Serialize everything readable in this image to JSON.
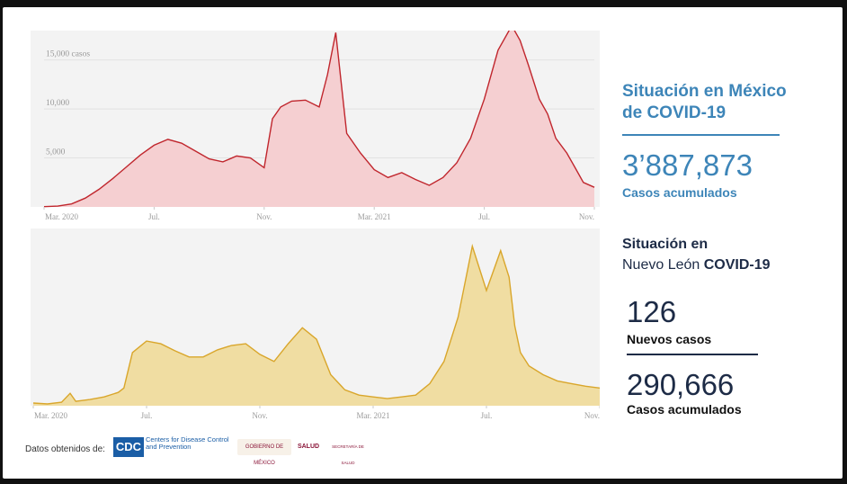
{
  "chart_data": [
    {
      "type": "area",
      "title": "",
      "color": "#c0262d",
      "fill": "#f5cfd1",
      "background": "#f3f3f3",
      "ylim": [
        0,
        18000
      ],
      "yticks": [
        5000,
        10000,
        15000
      ],
      "ytick_labels": [
        "5,000",
        "10,000",
        "15,000 casos"
      ],
      "xlim": [
        0,
        20
      ],
      "xticks": [
        0,
        4,
        8,
        12,
        16,
        20
      ],
      "xtick_labels": [
        "Mar. 2020",
        "Jul.",
        "Nov.",
        "Mar. 2021",
        "Jul.",
        "Nov."
      ],
      "x": [
        0,
        0.5,
        1,
        1.5,
        2,
        2.5,
        3,
        3.5,
        4,
        4.5,
        5,
        5.5,
        6,
        6.5,
        7,
        7.5,
        8,
        8.3,
        8.6,
        9,
        9.5,
        10,
        10.3,
        10.6,
        11,
        11.5,
        12,
        12.5,
        13,
        13.5,
        14,
        14.5,
        15,
        15.5,
        16,
        16.5,
        17,
        17.3,
        17.6,
        18,
        18.3,
        18.6,
        19,
        19.3,
        19.6,
        20
      ],
      "y": [
        30,
        80,
        300,
        900,
        1800,
        2900,
        4100,
        5300,
        6300,
        6900,
        6500,
        5700,
        4900,
        4600,
        5200,
        5000,
        4000,
        9000,
        10200,
        10800,
        10900,
        10200,
        13500,
        17800,
        7500,
        5500,
        3800,
        3000,
        3500,
        2800,
        2200,
        3000,
        4500,
        7000,
        11000,
        16000,
        18500,
        17000,
        14500,
        11000,
        9500,
        7000,
        5500,
        4000,
        2500,
        2000
      ]
    },
    {
      "type": "area",
      "title": "",
      "color": "#d9a62b",
      "fill": "#f0dda2",
      "background": "#f3f3f3",
      "ylim": [
        0,
        200
      ],
      "xlim": [
        0,
        20
      ],
      "xticks": [
        0,
        4,
        8,
        12,
        16,
        20
      ],
      "xtick_labels": [
        "Mar. 2020",
        "Jul.",
        "Nov.",
        "Mar. 2021",
        "Jul.",
        "Nov."
      ],
      "x": [
        0,
        0.5,
        1,
        1.3,
        1.5,
        2,
        2.5,
        3,
        3.2,
        3.5,
        4,
        4.5,
        5,
        5.5,
        6,
        6.5,
        7,
        7.5,
        8,
        8.5,
        9,
        9.5,
        10,
        10.5,
        11,
        11.5,
        12,
        12.5,
        13,
        13.5,
        14,
        14.5,
        15,
        15.5,
        16,
        16.5,
        16.8,
        17,
        17.2,
        17.5,
        18,
        18.5,
        19,
        19.5,
        20
      ],
      "y": [
        3,
        2,
        4,
        14,
        5,
        7,
        10,
        15,
        20,
        60,
        73,
        70,
        62,
        55,
        55,
        63,
        68,
        70,
        58,
        50,
        70,
        88,
        75,
        35,
        18,
        12,
        10,
        8,
        10,
        12,
        25,
        50,
        100,
        180,
        130,
        175,
        145,
        90,
        60,
        45,
        35,
        28,
        25,
        22,
        20
      ]
    }
  ],
  "panel": {
    "mx_title_line1": "Situación en México",
    "mx_title_line2": "de COVID-19",
    "mx_total": "3’887,873",
    "mx_total_label": "Casos acumulados",
    "nl_title_line1": "Situación en",
    "nl_title_line2_plain": "Nuevo León",
    "nl_title_line2_bold": "COVID-19",
    "nl_new": "126",
    "nl_new_label": "Nuevos casos",
    "nl_total": "290,666",
    "nl_total_label": "Casos acumulados",
    "accent": "#3d85b8",
    "dark": "#1d2b46"
  },
  "footer": {
    "source_label": "Datos obtenidos de:",
    "cdc_abbr": "CDC",
    "cdc_name": "Centers for Disease Control and Prevention",
    "gov_logo": "GOBIERNO DE MÉXICO",
    "salud_logo": "SALUD",
    "secretaria_logo": "SECRETARÍA DE SALUD"
  }
}
